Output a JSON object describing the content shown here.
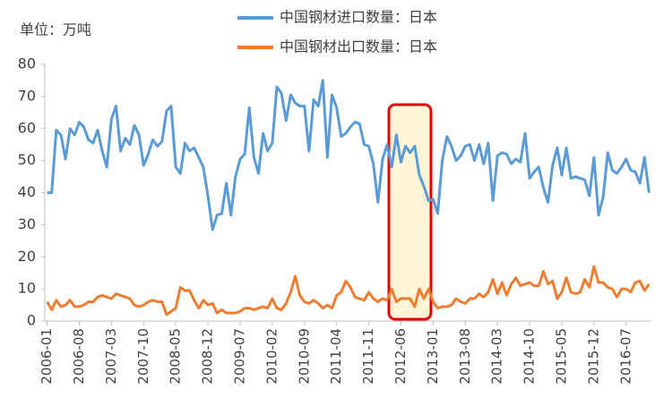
{
  "chart_data": {
    "type": "line",
    "unit_label": "单位：万吨",
    "categories": [
      "2006-01",
      null,
      null,
      null,
      null,
      null,
      null,
      "2006-08",
      null,
      null,
      null,
      null,
      null,
      null,
      "2007-03",
      null,
      null,
      null,
      null,
      null,
      null,
      "2007-10",
      null,
      null,
      null,
      null,
      null,
      null,
      "2008-05",
      null,
      null,
      null,
      null,
      null,
      null,
      "2008-12",
      null,
      null,
      null,
      null,
      null,
      null,
      "2009-07",
      null,
      null,
      null,
      null,
      null,
      null,
      "2010-02",
      null,
      null,
      null,
      null,
      null,
      null,
      "2010-09",
      null,
      null,
      null,
      null,
      null,
      null,
      "2011-04",
      null,
      null,
      null,
      null,
      null,
      null,
      "2011-11",
      null,
      null,
      null,
      null,
      null,
      null,
      "2012-06",
      null,
      null,
      null,
      null,
      null,
      null,
      "2013-01",
      null,
      null,
      null,
      null,
      null,
      null,
      "2013-08",
      null,
      null,
      null,
      null,
      null,
      null,
      "2014-03",
      null,
      null,
      null,
      null,
      null,
      null,
      "2014-10",
      null,
      null,
      null,
      null,
      null,
      null,
      "2015-05",
      null,
      null,
      null,
      null,
      null,
      null,
      "2015-12",
      null,
      null,
      null,
      null,
      null,
      null,
      "2016-07",
      null,
      null,
      null,
      null,
      null
    ],
    "series": [
      {
        "name": "中国钢材进口数量：日本",
        "color": "#5b9bd5",
        "values": [
          40,
          40,
          59.5,
          58,
          50.5,
          60,
          58,
          62,
          60.5,
          56.5,
          55.5,
          59.5,
          53,
          48,
          63,
          67,
          53,
          57,
          55,
          61,
          58,
          48.5,
          52,
          56.5,
          54.5,
          56,
          65.5,
          67,
          48,
          46,
          55.5,
          53,
          54,
          51,
          48,
          39,
          28.5,
          33,
          33.5,
          43,
          33,
          45,
          50.5,
          52,
          66.5,
          51,
          46,
          58.5,
          53,
          55.5,
          73,
          71,
          62.5,
          70.5,
          68,
          67,
          67,
          53,
          69,
          67,
          75,
          51,
          70.5,
          66.5,
          57.5,
          58.5,
          60.5,
          62,
          61.5,
          55,
          54.5,
          49,
          37,
          50.5,
          55,
          48,
          58,
          49.5,
          54.5,
          52.5,
          54.5,
          45.5,
          42,
          37.5,
          38,
          33.5,
          50,
          57.5,
          54.5,
          50,
          51.5,
          54.5,
          55,
          50,
          55,
          49,
          55.5,
          37.5,
          51.5,
          52.5,
          52,
          49,
          50.5,
          49.5,
          58.5,
          44.5,
          46.5,
          48,
          41.5,
          37,
          48.5,
          54,
          45.5,
          54,
          44.5,
          45,
          44.5,
          44,
          39,
          51,
          33,
          38.5,
          52.5,
          47,
          46,
          48,
          50.5,
          47,
          46.5,
          43,
          51,
          40
        ]
      },
      {
        "name": "中国钢材出口数量：日本",
        "color": "#ed7d31",
        "values": [
          6,
          3.5,
          6.5,
          4.5,
          5,
          6.5,
          4.5,
          4.5,
          5,
          6,
          6,
          7.5,
          8,
          7.5,
          7,
          8.5,
          8,
          7.5,
          7,
          5,
          4.5,
          5,
          6,
          6.5,
          6,
          6,
          2,
          3,
          4,
          10.5,
          9.5,
          9.5,
          6.5,
          4,
          6.5,
          5,
          5.5,
          2.5,
          3.5,
          2.5,
          2.5,
          2.5,
          3,
          4,
          4,
          3.5,
          4,
          4.5,
          4,
          7,
          4,
          3.5,
          5.5,
          9,
          14,
          8,
          6,
          5.5,
          6.5,
          5.5,
          4,
          5,
          4,
          8,
          9,
          12.5,
          10.5,
          7.5,
          7,
          6.5,
          9,
          7,
          6,
          7,
          6.5,
          10,
          6,
          7,
          7,
          7,
          4.5,
          10,
          7,
          10,
          6,
          4,
          4.5,
          4.5,
          5,
          7,
          6,
          5.5,
          7,
          7,
          8.5,
          7.5,
          9,
          13,
          8.5,
          12,
          8,
          11.5,
          13.5,
          11,
          11.5,
          12,
          11,
          11,
          15.5,
          11.5,
          12.5,
          7,
          9,
          13.5,
          9,
          8.5,
          9,
          13,
          10.5,
          17,
          12,
          12,
          10.5,
          10,
          7.5,
          10,
          10,
          9,
          12,
          12.5,
          9.5,
          11.5
        ]
      }
    ],
    "ylim": [
      0,
      80
    ],
    "yticks": [
      0,
      10,
      20,
      30,
      40,
      50,
      60,
      70,
      80
    ],
    "grid": false
  }
}
